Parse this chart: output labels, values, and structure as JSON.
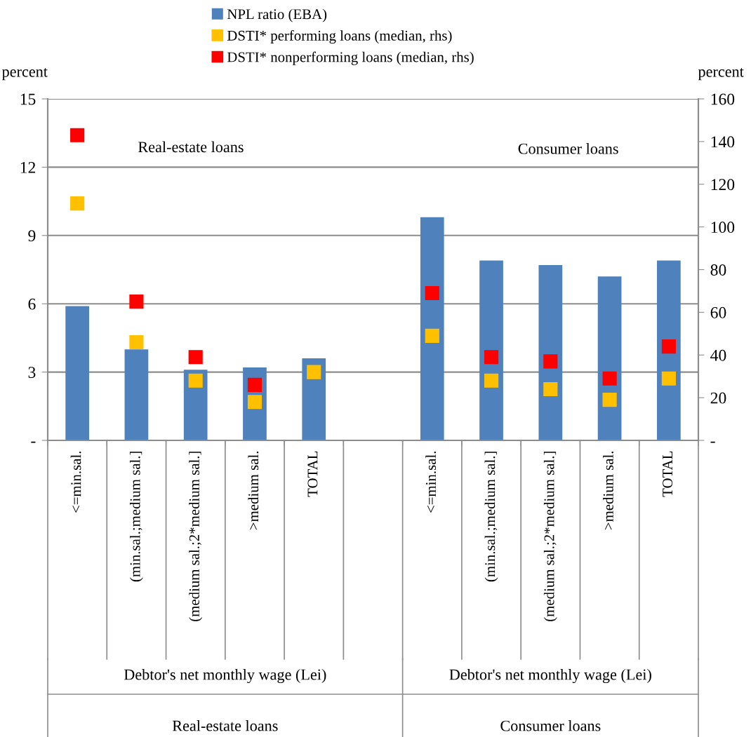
{
  "chart_data": {
    "type": "bar",
    "categories": [
      "<=min.sal.",
      "(min.sal.;medium sal.]",
      "(medium sal.;2*medium sal.]",
      ">medium sal.",
      "TOTAL",
      null,
      "<=min.sal.",
      "(min.sal.;medium sal.]",
      "(medium sal.;2*medium sal.]",
      ">medium sal.",
      "TOTAL"
    ],
    "series": [
      {
        "name": "NPL ratio (EBA)",
        "color": "#4f81bd",
        "values": [
          5.9,
          4.0,
          3.1,
          3.2,
          3.6,
          null,
          9.8,
          7.9,
          7.7,
          7.2,
          7.9
        ]
      },
      {
        "name": "DSTI* performing loans (median, rhs)",
        "type": "scatter",
        "axis": "y2",
        "color": "#ffc000",
        "values": [
          111,
          46,
          28,
          18,
          32,
          null,
          49,
          28,
          24,
          19,
          29
        ]
      },
      {
        "name": "DSTI* nonperforming loans (median, rhs)",
        "type": "scatter",
        "axis": "y2",
        "color": "#ff0000",
        "values": [
          143,
          65,
          39,
          26,
          null,
          null,
          69,
          39,
          37,
          29,
          44
        ]
      }
    ],
    "ylabel": "percent",
    "y2label": "percent",
    "ylim": [
      0,
      15
    ],
    "yticks": [
      {
        "value": 0,
        "label": "-"
      },
      3,
      6,
      9,
      12,
      15
    ],
    "y2lim": [
      0,
      160
    ],
    "y2ticks": [
      {
        "value": 0,
        "label": "-"
      },
      20,
      40,
      60,
      80,
      100,
      120,
      140,
      160
    ],
    "grid": "y",
    "legend": "top",
    "marker": "square",
    "annotations": [
      "Real-estate loans",
      "Consumer loans",
      "Debtor's net monthly wage (Lei)",
      "Debtor's net monthly wage (Lei)",
      "Real-estate loans",
      "Consumer loans"
    ]
  }
}
